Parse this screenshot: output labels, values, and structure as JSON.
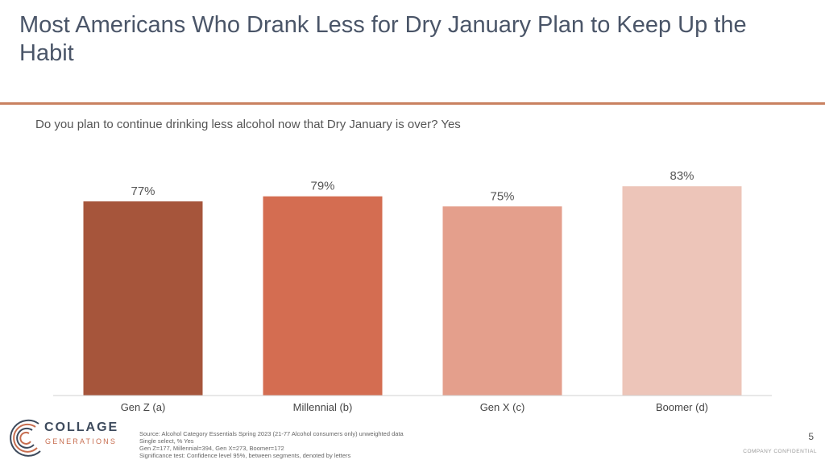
{
  "slide": {
    "title": "Most Americans Who Drank Less for Dry January Plan to Keep Up the Habit",
    "subtitle": "Do you plan to continue drinking less alcohol now that Dry January is over? Yes",
    "page_number": "5",
    "confidential": "COMPANY CONFIDENTIAL"
  },
  "chart_data": {
    "type": "bar",
    "categories": [
      "Gen Z (a)",
      "Millennial (b)",
      "Gen X (c)",
      "Boomer (d)"
    ],
    "values": [
      77,
      79,
      75,
      83
    ],
    "data_labels": [
      "77%",
      "79%",
      "75%",
      "83%"
    ],
    "colors": [
      "#a6553b",
      "#d46d51",
      "#e49f8c",
      "#edc5b9"
    ],
    "ylim": [
      0,
      100
    ],
    "grid": false,
    "legend": "none"
  },
  "footer": {
    "logo_name": "COLLAGE",
    "logo_sub": "GENERATIONS",
    "notes": [
      "Source: Alcohol Category Essentials Spring 2023 (21-77 Alcohol consumers only) unweighted data",
      "Single select, % Yes",
      "Gen Z=177,  Millennial=394, Gen X=273, Boomer=172",
      "Significance test: Confidence level 95%, between segments, denoted by letters"
    ]
  },
  "colors": {
    "title_text": "#4a5568",
    "rule": "#c98160",
    "brand_navy": "#3d4a5c",
    "brand_orange": "#c76e50"
  }
}
